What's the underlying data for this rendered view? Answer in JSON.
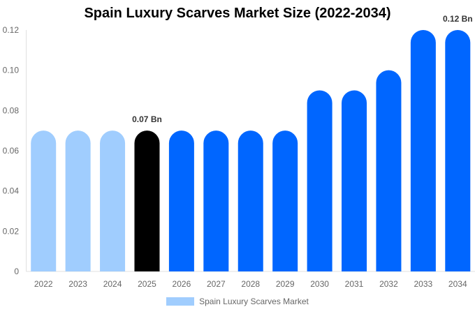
{
  "chart_data": {
    "type": "bar",
    "title": "Spain Luxury Scarves Market Size (2022-2034)",
    "categories": [
      "2022",
      "2023",
      "2024",
      "2025",
      "2026",
      "2027",
      "2028",
      "2029",
      "2030",
      "2031",
      "2032",
      "2033",
      "2034"
    ],
    "series": [
      {
        "name": "Spain Luxury Scarves Market",
        "values": [
          0.07,
          0.07,
          0.07,
          0.07,
          0.07,
          0.07,
          0.07,
          0.07,
          0.09,
          0.09,
          0.1,
          0.12,
          0.12
        ]
      }
    ],
    "bar_colors": [
      "#a0cdfe",
      "#a0cdfe",
      "#a0cdfe",
      "#000000",
      "#0066ff",
      "#0066ff",
      "#0066ff",
      "#0066ff",
      "#0066ff",
      "#0066ff",
      "#0066ff",
      "#0066ff",
      "#0066ff"
    ],
    "data_labels": {
      "3": "0.07 Bn",
      "12": "0.12 Bn"
    },
    "yticks": [
      "0",
      "0.02",
      "0.04",
      "0.06",
      "0.08",
      "0.10",
      "0.12"
    ],
    "ylim": [
      0,
      0.12
    ],
    "xlabel": "",
    "ylabel": "",
    "grid": false,
    "legend": {
      "position": "bottom",
      "label": "Spain Luxury Scarves Market",
      "color": "#a0cdfe"
    }
  }
}
